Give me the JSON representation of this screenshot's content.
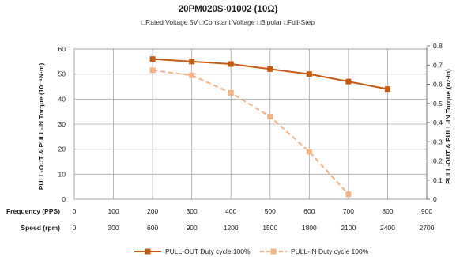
{
  "chart_data": {
    "type": "line",
    "title": "20PM020S-01002 (10Ω)",
    "subtitle": "□Rated Voltage  5V □Constant  Voltage □Bipolar □Full-Step",
    "ylabel_left": "PULL-OUT & PULL-IN Torque (10⁻⁴N·m)",
    "ylabel_right": "PULL-OUT & PULL-IN Torque (oz·in)",
    "x_axis_label": "Frequency (PPS)",
    "x_ticks": [
      0,
      100,
      200,
      300,
      400,
      500,
      600,
      700,
      800,
      900
    ],
    "xlim": [
      0,
      900
    ],
    "speed_axis_label": "Speed (rpm)",
    "speed_ticks": [
      0,
      300,
      600,
      900,
      1200,
      1500,
      1800,
      2100,
      2400,
      2700
    ],
    "y_left_ticks": [
      0,
      10,
      20,
      30,
      40,
      50,
      60
    ],
    "ylim_left": [
      0,
      60
    ],
    "y_right_ticks": [
      "0",
      "0.1",
      "0.2",
      "0.3",
      "0.4",
      "0.5",
      "0.6",
      "0.7",
      "0.8"
    ],
    "grid": true,
    "legend_position": "bottom",
    "series": [
      {
        "name": "PULL-OUT Duty cycle 100%",
        "color": "#c55a11",
        "line_style": "solid",
        "marker": "square",
        "x": [
          200,
          300,
          400,
          500,
          600,
          700,
          800
        ],
        "values": [
          56,
          55,
          54,
          52,
          50,
          47,
          44
        ]
      },
      {
        "name": "PULL-IN  Duty cycle 100%",
        "color": "#f4b183",
        "line_style": "dashed",
        "marker": "square",
        "x": [
          200,
          300,
          400,
          500,
          600,
          700
        ],
        "values": [
          51.5,
          49.5,
          42.5,
          33,
          19,
          2
        ]
      }
    ]
  }
}
